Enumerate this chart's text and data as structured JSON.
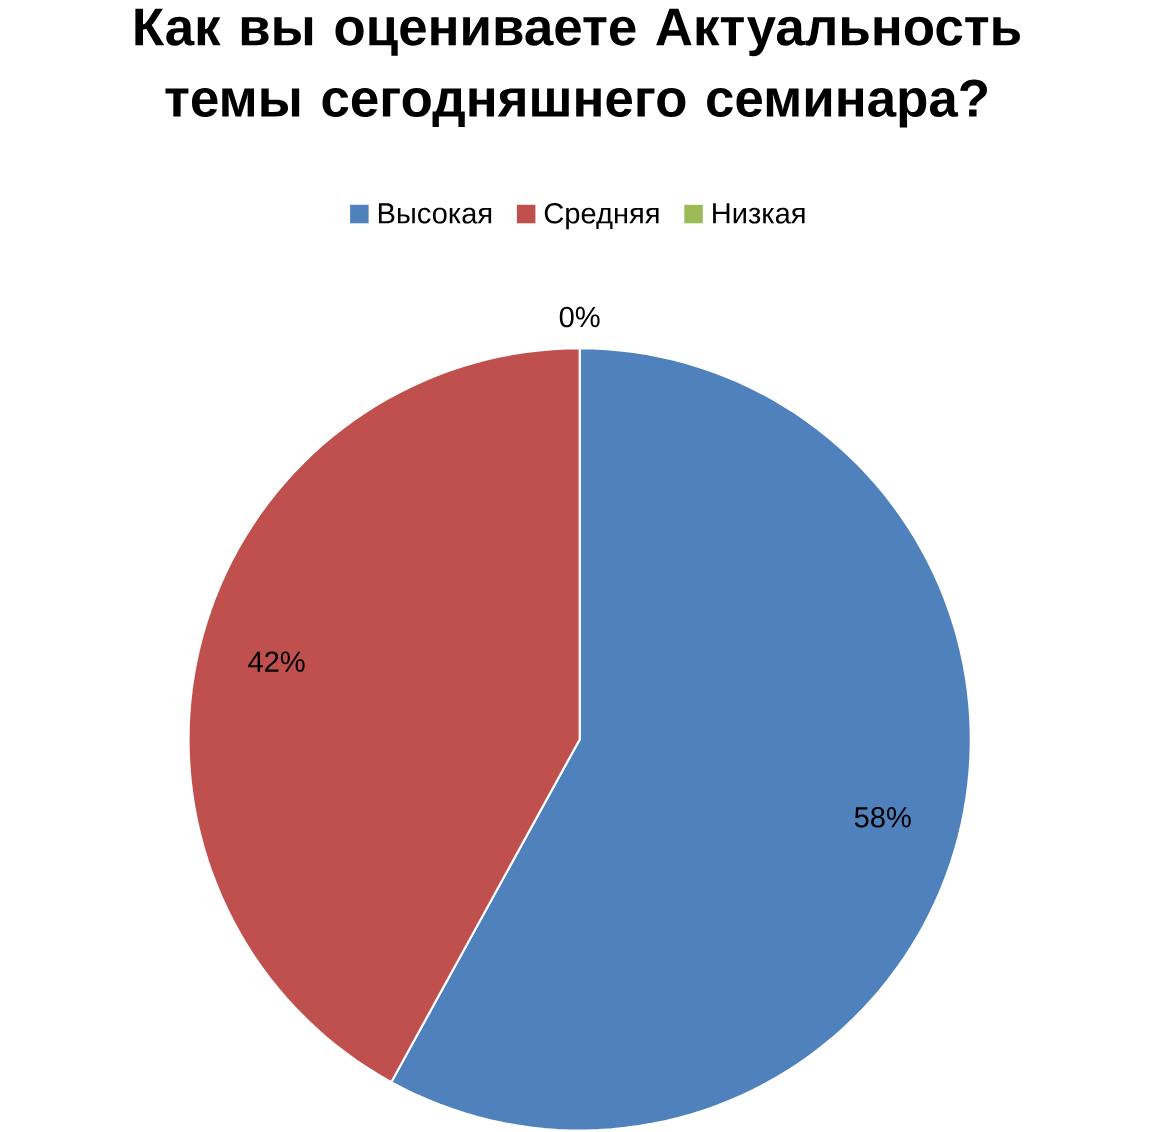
{
  "chart_data": {
    "type": "pie",
    "title": "Как вы оцениваете Актуальность темы сегодняшнего семинара?",
    "categories": [
      "Высокая",
      "Средняя",
      "Низкая"
    ],
    "values": [
      58,
      42,
      0
    ],
    "colors": [
      "#4f81bd",
      "#c0504d",
      "#9bbb59"
    ],
    "value_labels": [
      "58%",
      "42%",
      "0%"
    ],
    "legend": "top"
  }
}
